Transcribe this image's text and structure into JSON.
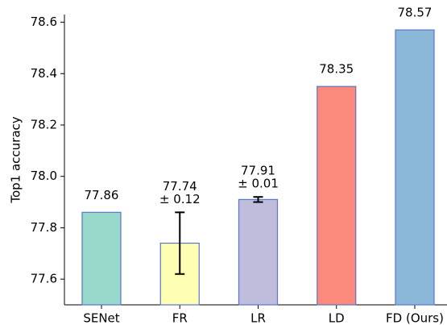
{
  "chart_data": {
    "type": "bar",
    "ylabel": "Top1 accuracy",
    "categories": [
      "SENet",
      "FR",
      "LR",
      "LD",
      "FD (Ours)"
    ],
    "values": [
      77.86,
      77.74,
      77.91,
      78.35,
      78.57
    ],
    "value_labels": [
      "77.86",
      "77.74",
      "77.91",
      "78.35",
      "78.57"
    ],
    "errors": [
      null,
      0.12,
      0.01,
      null,
      null
    ],
    "error_labels": [
      null,
      "± 0.12",
      "± 0.01",
      null,
      null
    ],
    "colors": [
      "#98d8cb",
      "#ffffb3",
      "#bfbcdc",
      "#fb8a7d",
      "#8bb8d8"
    ],
    "edgecolor": "#5a76c8",
    "ylim": [
      77.5,
      78.63
    ],
    "yticks": [
      77.6,
      77.8,
      {
        "value": 78.0,
        "label": "78.0"
      },
      78.2,
      78.4,
      78.6
    ]
  }
}
